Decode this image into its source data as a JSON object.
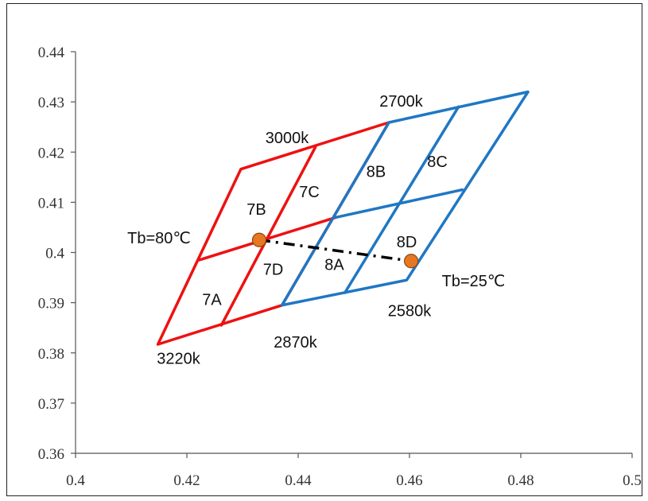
{
  "chart_data": {
    "type": "line",
    "title": "",
    "xlabel": "",
    "ylabel": "",
    "xlim": [
      0.4,
      0.5
    ],
    "ylim": [
      0.36,
      0.44
    ],
    "x_ticks": [
      "0.4",
      "0.42",
      "0.44",
      "0.46",
      "0.48",
      "0.5"
    ],
    "y_ticks": [
      "0.36",
      "0.37",
      "0.38",
      "0.39",
      "0.4",
      "0.41",
      "0.42",
      "0.43",
      "0.44"
    ],
    "grid": false,
    "colors": {
      "red": "#ee1111",
      "blue": "#1f77c4",
      "marker": "#e87722",
      "dash": "#000000"
    },
    "series": [
      {
        "color": "red",
        "x": [
          0.4148,
          0.4297,
          0.4563,
          0.4371,
          0.4148
        ],
        "y": [
          0.3817,
          0.4166,
          0.4259,
          0.3895,
          0.3817
        ]
      },
      {
        "color": "red",
        "x": [
          0.4222,
          0.4468
        ],
        "y": [
          0.3985,
          0.407
        ]
      },
      {
        "color": "red",
        "x": [
          0.4262,
          0.4431
        ],
        "y": [
          0.3855,
          0.421
        ]
      },
      {
        "color": "blue",
        "x": [
          0.4371,
          0.4563,
          0.4813,
          0.4595,
          0.4371
        ],
        "y": [
          0.3895,
          0.4259,
          0.432,
          0.3945,
          0.3895
        ]
      },
      {
        "color": "blue",
        "x": [
          0.4468,
          0.4695
        ],
        "y": [
          0.407,
          0.4125
        ]
      },
      {
        "color": "blue",
        "x": [
          0.4484,
          0.4688
        ],
        "y": [
          0.392,
          0.429
        ]
      }
    ],
    "markers": [
      {
        "x": 0.433,
        "y": 0.4025
      },
      {
        "x": 0.4603,
        "y": 0.3983
      }
    ],
    "dashed_line": {
      "x": [
        0.433,
        0.4603
      ],
      "y": [
        0.4025,
        0.3983
      ]
    },
    "annotations": [
      {
        "text": "7A",
        "x": 0.4245,
        "y": 0.3905
      },
      {
        "text": "7B",
        "x": 0.4325,
        "y": 0.4085
      },
      {
        "text": "7C",
        "x": 0.442,
        "y": 0.412
      },
      {
        "text": "7D",
        "x": 0.4355,
        "y": 0.3965
      },
      {
        "text": "8A",
        "x": 0.4465,
        "y": 0.3975
      },
      {
        "text": "8B",
        "x": 0.454,
        "y": 0.416
      },
      {
        "text": "8C",
        "x": 0.465,
        "y": 0.418
      },
      {
        "text": "8D",
        "x": 0.4595,
        "y": 0.402
      },
      {
        "text": "3000k",
        "x": 0.438,
        "y": 0.4227
      },
      {
        "text": "2700k",
        "x": 0.4585,
        "y": 0.43
      },
      {
        "text": "2580k",
        "x": 0.46,
        "y": 0.3883
      },
      {
        "text": "2870k",
        "x": 0.4395,
        "y": 0.382
      },
      {
        "text": "3220k",
        "x": 0.4185,
        "y": 0.3788
      },
      {
        "text": "Tb=80℃",
        "x": 0.415,
        "y": 0.4028
      },
      {
        "text": "Tb=25℃",
        "x": 0.4715,
        "y": 0.3942
      }
    ]
  }
}
